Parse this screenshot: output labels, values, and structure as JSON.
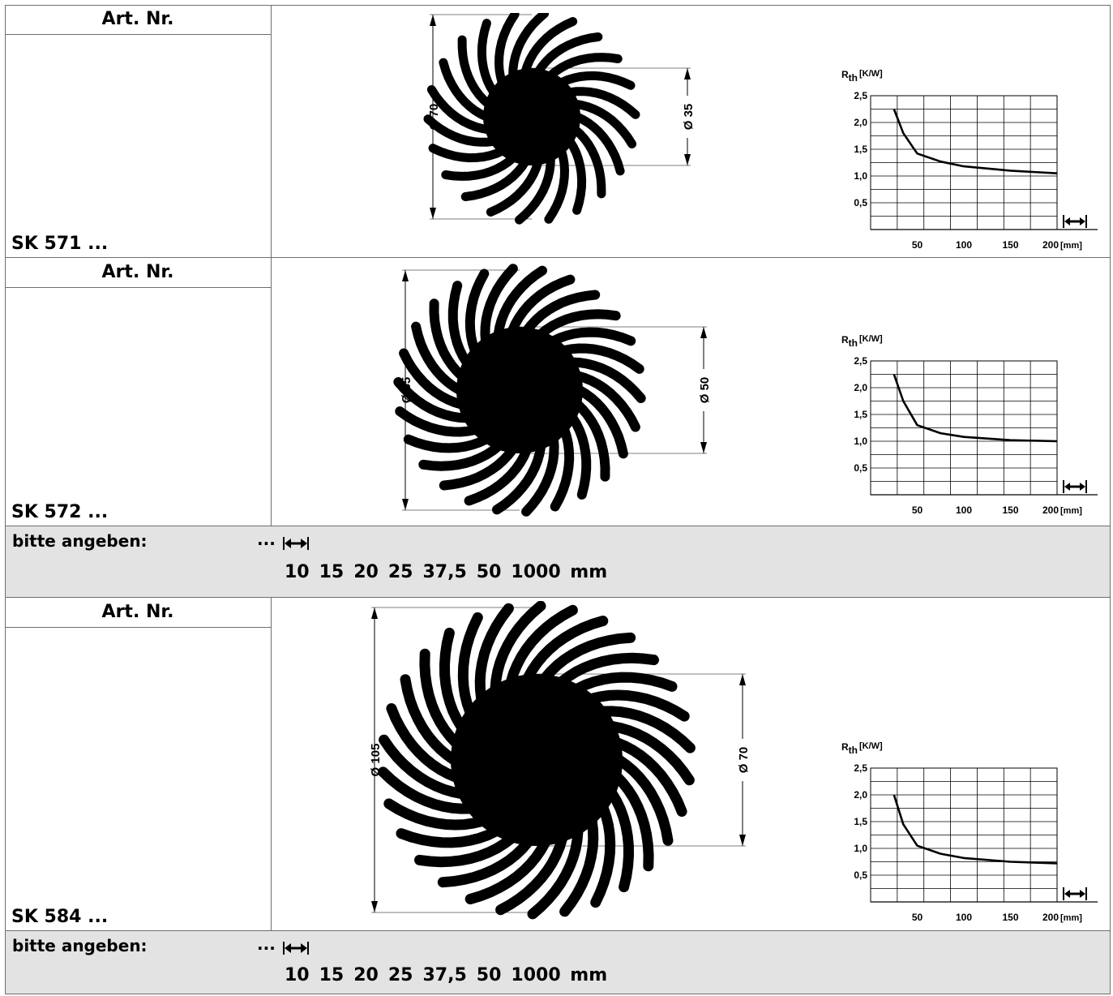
{
  "sections": [
    {
      "art_header": "Art. Nr.",
      "article": "SK 571 ...",
      "dim_outer": "Ø 70",
      "dim_inner": "Ø 35",
      "chart_data": {
        "type": "line",
        "ylabel_main": "R",
        "ylabel_sub": "th",
        "ylabel_unit": "[K/W]",
        "xlabel_unit": "[mm]",
        "x_ticks": [
          "50",
          "100",
          "150",
          "200"
        ],
        "y_ticks": [
          "0,5",
          "1,0",
          "1,5",
          "2,0",
          "2,5"
        ],
        "xlim": [
          0,
          200
        ],
        "ylim": [
          0,
          2.5
        ],
        "grid": true,
        "series": [
          {
            "x": [
              25,
              35,
              50,
              75,
              100,
              150,
              200
            ],
            "y": [
              2.25,
              1.8,
              1.42,
              1.27,
              1.18,
              1.1,
              1.05
            ]
          }
        ]
      }
    },
    {
      "art_header": "Art. Nr.",
      "article": "SK 572 ...",
      "dim_outer": "Ø 85",
      "dim_inner": "Ø 50",
      "chart_data": {
        "type": "line",
        "ylabel_main": "R",
        "ylabel_sub": "th",
        "ylabel_unit": "[K/W]",
        "xlabel_unit": "[mm]",
        "x_ticks": [
          "50",
          "100",
          "150",
          "200"
        ],
        "y_ticks": [
          "0,5",
          "1,0",
          "1,5",
          "2,0",
          "2,5"
        ],
        "xlim": [
          0,
          200
        ],
        "ylim": [
          0,
          2.5
        ],
        "grid": true,
        "series": [
          {
            "x": [
              25,
              35,
              50,
              75,
              100,
              150,
              200
            ],
            "y": [
              2.25,
              1.75,
              1.3,
              1.15,
              1.08,
              1.02,
              1.0
            ]
          }
        ]
      }
    },
    {
      "art_header": "Art. Nr.",
      "article": "SK 584 ...",
      "dim_outer": "Ø 105",
      "dim_inner": "Ø 70",
      "chart_data": {
        "type": "line",
        "ylabel_main": "R",
        "ylabel_sub": "th",
        "ylabel_unit": "[K/W]",
        "xlabel_unit": "[mm]",
        "x_ticks": [
          "50",
          "100",
          "150",
          "200"
        ],
        "y_ticks": [
          "0,5",
          "1,0",
          "1,5",
          "2,0",
          "2,5"
        ],
        "xlim": [
          0,
          200
        ],
        "ylim": [
          0,
          2.5
        ],
        "grid": true,
        "series": [
          {
            "x": [
              25,
              35,
              50,
              75,
              100,
              150,
              200
            ],
            "y": [
              2.0,
              1.45,
              1.05,
              0.9,
              0.82,
              0.75,
              0.72
            ]
          }
        ]
      }
    }
  ],
  "bands": [
    {
      "label": "bitte angeben:",
      "dots": "...",
      "lengths": [
        "10",
        "15",
        "20",
        "25",
        "37,5",
        "50",
        "1000 mm"
      ]
    },
    {
      "label": "bitte angeben:",
      "dots": "...",
      "lengths": [
        "10",
        "15",
        "20",
        "25",
        "37,5",
        "50",
        "1000 mm"
      ]
    }
  ],
  "icons": {
    "length": "length-arrow-icon"
  }
}
